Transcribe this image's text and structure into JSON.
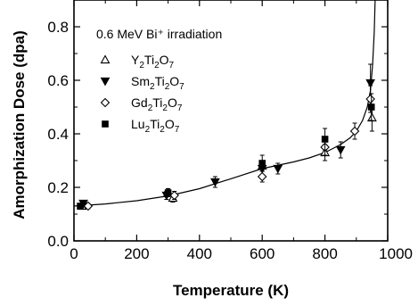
{
  "chart_data": {
    "type": "scatter",
    "annotation": "0.6 MeV Bi⁺ irradiation",
    "xlabel": "Temperature (K)",
    "ylabel": "Amorphization Dose (dpa)",
    "xlim": [
      0,
      1000
    ],
    "ylim": [
      0.0,
      0.9
    ],
    "xticks": [
      "0",
      "200",
      "400",
      "600",
      "800",
      "1000"
    ],
    "yticks": [
      "0.0",
      "0.2",
      "0.4",
      "0.6",
      "0.8"
    ],
    "legend_position": "top-left",
    "series": [
      {
        "name": "Y2Ti2O7",
        "name_base": "Y",
        "name_sub1": "2",
        "name_mid": "Ti",
        "name_sub2": "2",
        "name_tail": "O",
        "name_sub3": "7",
        "marker": "triangle-up-open",
        "points": [
          {
            "x": 25,
            "y": 0.13,
            "err": 0.01
          },
          {
            "x": 300,
            "y": 0.18,
            "err": 0.015
          },
          {
            "x": 315,
            "y": 0.16,
            "err": 0.015
          },
          {
            "x": 600,
            "y": 0.28,
            "err": 0.02
          },
          {
            "x": 800,
            "y": 0.33,
            "err": 0.03
          },
          {
            "x": 950,
            "y": 0.46,
            "err": 0.05
          }
        ]
      },
      {
        "name": "Sm2Ti2O7",
        "name_base": "Sm",
        "name_sub1": "2",
        "name_mid": "Ti",
        "name_sub2": "2",
        "name_tail": "O",
        "name_sub3": "7",
        "marker": "triangle-down-filled",
        "points": [
          {
            "x": 30,
            "y": 0.14,
            "err": 0.01
          },
          {
            "x": 295,
            "y": 0.17,
            "err": 0.015
          },
          {
            "x": 450,
            "y": 0.22,
            "err": 0.02
          },
          {
            "x": 600,
            "y": 0.27,
            "err": 0.03
          },
          {
            "x": 650,
            "y": 0.27,
            "err": 0.02
          },
          {
            "x": 850,
            "y": 0.34,
            "err": 0.03
          },
          {
            "x": 945,
            "y": 0.59,
            "err": 0.07
          }
        ]
      },
      {
        "name": "Gd2Ti2O7",
        "name_base": "Gd",
        "name_sub1": "2",
        "name_mid": "Ti",
        "name_sub2": "2",
        "name_tail": "O",
        "name_sub3": "7",
        "marker": "diamond-open",
        "points": [
          {
            "x": 45,
            "y": 0.13,
            "err": 0.01
          },
          {
            "x": 320,
            "y": 0.17,
            "err": 0.015
          },
          {
            "x": 600,
            "y": 0.24,
            "err": 0.02
          },
          {
            "x": 800,
            "y": 0.35,
            "err": 0.03
          },
          {
            "x": 895,
            "y": 0.41,
            "err": 0.03
          },
          {
            "x": 945,
            "y": 0.53,
            "err": 0.05
          }
        ]
      },
      {
        "name": "Lu2Ti2O7",
        "name_base": "Lu",
        "name_sub1": "2",
        "name_mid": "Ti",
        "name_sub2": "2",
        "name_tail": "O",
        "name_sub3": "7",
        "marker": "square-filled",
        "points": [
          {
            "x": 20,
            "y": 0.13,
            "err": 0.01
          },
          {
            "x": 300,
            "y": 0.18,
            "err": 0.015
          },
          {
            "x": 600,
            "y": 0.29,
            "err": 0.03
          },
          {
            "x": 800,
            "y": 0.38,
            "err": 0.04
          },
          {
            "x": 948,
            "y": 0.5,
            "err": 0.05
          }
        ]
      }
    ],
    "fit_curve": {
      "x": [
        0,
        100,
        200,
        300,
        400,
        500,
        600,
        700,
        750,
        800,
        850,
        880,
        900,
        920,
        935,
        945,
        952,
        957,
        960
      ],
      "y": [
        0.13,
        0.138,
        0.15,
        0.168,
        0.195,
        0.232,
        0.27,
        0.295,
        0.31,
        0.33,
        0.36,
        0.385,
        0.41,
        0.45,
        0.5,
        0.56,
        0.66,
        0.78,
        0.92
      ]
    }
  }
}
